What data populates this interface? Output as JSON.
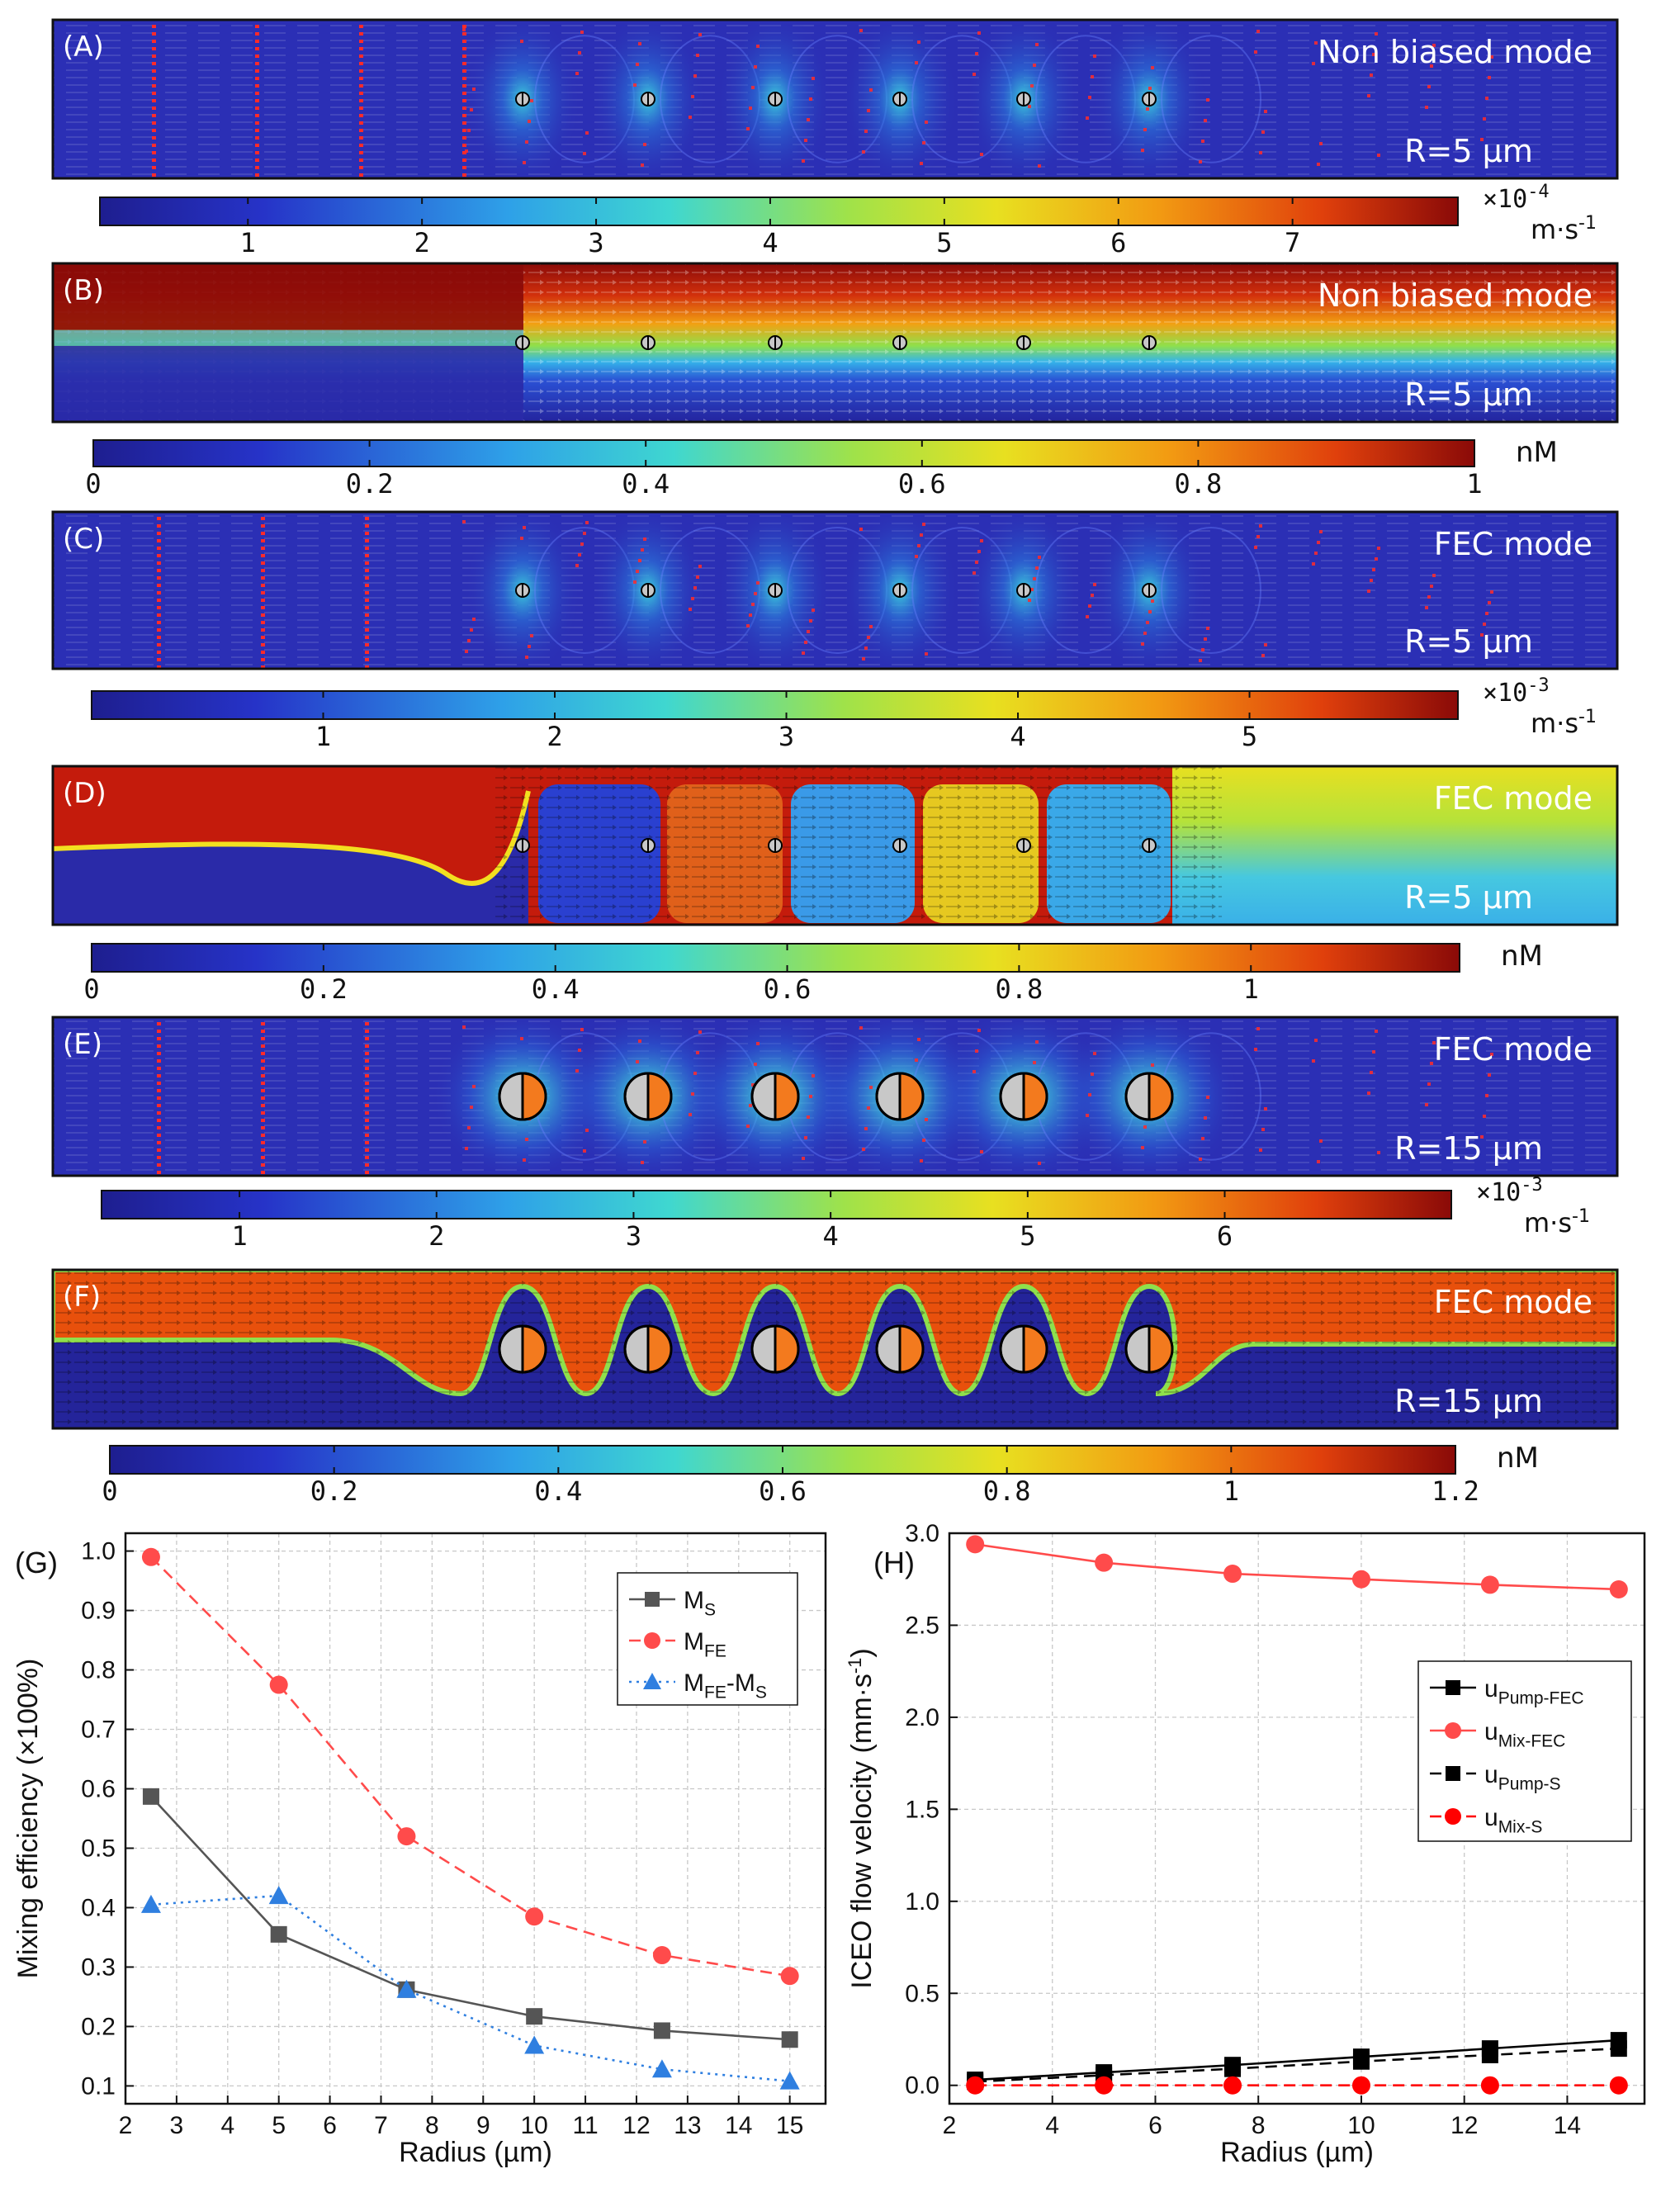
{
  "panels": [
    {
      "id": "A",
      "letter": "(A)",
      "mode": "Non biased mode",
      "radius": "R=5 µm",
      "kind": "velocity",
      "bg": "#2b2fb5",
      "markers": "small"
    },
    {
      "id": "B",
      "letter": "(B)",
      "mode": "Non biased mode",
      "radius": "R=5 µm",
      "kind": "conc_nb",
      "bg": "#2a2aa8",
      "markers": "small"
    },
    {
      "id": "C",
      "letter": "(C)",
      "mode": "FEC mode",
      "radius": "R=5 µm",
      "kind": "velocity",
      "bg": "#2b2fb5",
      "markers": "small"
    },
    {
      "id": "D",
      "letter": "(D)",
      "mode": "FEC mode",
      "radius": "R=5 µm",
      "kind": "conc_fec",
      "bg": "#c41b0c",
      "markers": "small"
    },
    {
      "id": "E",
      "letter": "(E)",
      "mode": "FEC mode",
      "radius": "R=15 µm",
      "kind": "velocity",
      "bg": "#2b2fb5",
      "markers": "large"
    },
    {
      "id": "F",
      "letter": "(F)",
      "mode": "FEC mode",
      "radius": "R=15 µm",
      "kind": "conc_f",
      "bg": "#24249a",
      "markers": "large"
    }
  ],
  "colorbars": [
    {
      "id": "A",
      "ticks": [
        "1",
        "2",
        "3",
        "4",
        "5",
        "6",
        "7"
      ],
      "min": 0.15,
      "max": 7.95,
      "tick_values": [
        1,
        2,
        3,
        4,
        5,
        6,
        7
      ],
      "multiplier": "×10",
      "exponent": "-4",
      "unit": "m·s",
      "unit_exp": "-1"
    },
    {
      "id": "B",
      "ticks": [
        "0",
        "0.2",
        "0.4",
        "0.6",
        "0.8",
        "1"
      ],
      "min": 0,
      "max": 1,
      "tick_values": [
        0,
        0.2,
        0.4,
        0.6,
        0.8,
        1
      ],
      "unit": "nM"
    },
    {
      "id": "C",
      "ticks": [
        "1",
        "2",
        "3",
        "4",
        "5"
      ],
      "min": 0,
      "max": 5.9,
      "tick_values": [
        1,
        2,
        3,
        4,
        5
      ],
      "multiplier": "×10",
      "exponent": "-3",
      "unit": "m·s",
      "unit_exp": "-1"
    },
    {
      "id": "D",
      "ticks": [
        "0",
        "0.2",
        "0.4",
        "0.6",
        "0.8",
        "1"
      ],
      "min": 0,
      "max": 1.18,
      "tick_values": [
        0,
        0.2,
        0.4,
        0.6,
        0.8,
        1
      ],
      "unit": "nM"
    },
    {
      "id": "E",
      "ticks": [
        "1",
        "2",
        "3",
        "4",
        "5",
        "6"
      ],
      "min": 0.3,
      "max": 7.15,
      "tick_values": [
        1,
        2,
        3,
        4,
        5,
        6
      ],
      "multiplier": "×10",
      "exponent": "-3",
      "unit": "m·s",
      "unit_exp": "-1"
    },
    {
      "id": "F",
      "ticks": [
        "0",
        "0.2",
        "0.4",
        "0.6",
        "0.8",
        "1",
        "1.2"
      ],
      "min": 0,
      "max": 1.2,
      "tick_values": [
        0,
        0.2,
        0.4,
        0.6,
        0.8,
        1,
        1.2
      ],
      "unit": "nM"
    }
  ],
  "chart_data": [
    {
      "panel": "(G)",
      "type": "line",
      "xlabel": "Radius (µm)",
      "ylabel": "Mixing efficiency (×100%)",
      "xlim": [
        2,
        15.7
      ],
      "ylim": [
        0.07,
        1.03
      ],
      "xticks": [
        2,
        3,
        4,
        5,
        6,
        7,
        8,
        9,
        10,
        11,
        12,
        13,
        14,
        15
      ],
      "yticks": [
        0.1,
        0.2,
        0.3,
        0.4,
        0.5,
        0.6,
        0.7,
        0.8,
        0.9,
        1.0
      ],
      "x": [
        2.5,
        5,
        7.5,
        10,
        12.5,
        15
      ],
      "series": [
        {
          "name": "M",
          "sub": "S",
          "color": "#555555",
          "marker": "square",
          "dash": "solid",
          "values": [
            0.587,
            0.355,
            0.262,
            0.217,
            0.193,
            0.178
          ]
        },
        {
          "name": "M",
          "sub": "FE",
          "color": "#ff4b4b",
          "marker": "circle",
          "dash": "dashed",
          "values": [
            0.99,
            0.775,
            0.52,
            0.385,
            0.32,
            0.285
          ]
        },
        {
          "name": "M",
          "sub": "FE",
          "suffix": "-M",
          "suffix_sub": "S",
          "color": "#2f7fe0",
          "marker": "triangle",
          "dash": "dotted",
          "values": [
            0.405,
            0.42,
            0.262,
            0.168,
            0.128,
            0.108
          ]
        }
      ],
      "legend": "top-right"
    },
    {
      "panel": "(H)",
      "type": "line",
      "xlabel": "Radius (µm)",
      "ylabel": "ICEO flow velocity (mm·s",
      "ylabel_sup": "-1",
      "ylabel_end": ")",
      "xlim": [
        2,
        15.5
      ],
      "ylim": [
        -0.1,
        3.0
      ],
      "xticks": [
        2,
        4,
        6,
        8,
        10,
        12,
        14
      ],
      "yticks": [
        0.0,
        0.5,
        1.0,
        1.5,
        2.0,
        2.5,
        3.0
      ],
      "ytick_labels": [
        "0.0",
        "0.5",
        "1.0",
        "1.5",
        "2.0",
        "2.5",
        "3.0"
      ],
      "x": [
        2.5,
        5,
        7.5,
        10,
        12.5,
        15
      ],
      "series": [
        {
          "name": "u",
          "sub": "Pump-FEC",
          "color": "#000000",
          "marker": "square",
          "dash": "solid",
          "values": [
            0.03,
            0.07,
            0.11,
            0.155,
            0.2,
            0.245
          ]
        },
        {
          "name": "u",
          "sub": "Mix-FEC",
          "color": "#ff4b4b",
          "marker": "circle",
          "dash": "solid",
          "values": [
            2.94,
            2.84,
            2.78,
            2.75,
            2.72,
            2.695
          ]
        },
        {
          "name": "u",
          "sub": "Pump-S",
          "color": "#000000",
          "marker": "square",
          "dash": "dashed",
          "values": [
            0.02,
            0.055,
            0.09,
            0.13,
            0.165,
            0.2
          ]
        },
        {
          "name": "u",
          "sub": "Mix-S",
          "color": "#ff0000",
          "marker": "circle",
          "dash": "dashed",
          "values": [
            0.0,
            0.0,
            0.0,
            0.0,
            0.0,
            0.0
          ]
        }
      ],
      "legend": "center-right"
    }
  ]
}
